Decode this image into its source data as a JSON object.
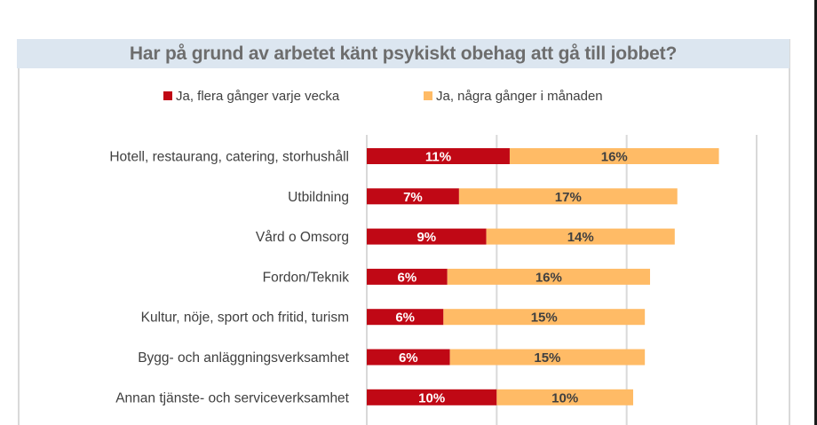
{
  "chart_data": {
    "type": "bar",
    "orientation": "horizontal",
    "stacked": true,
    "title": "Har på grund av arbetet känt psykiskt obehag att gå till jobbet?",
    "xlabel": "",
    "ylabel": "",
    "xlim": [
      0,
      30
    ],
    "grid": true,
    "gridlines_at": [
      0,
      10,
      20,
      30
    ],
    "legend_position": "top",
    "categories": [
      "Hotell, restaurang, catering, storhushåll",
      "Utbildning",
      "Vård o Omsorg",
      "Fordon/Teknik",
      "Kultur, nöje, sport och fritid, turism",
      "Bygg- och anläggningsverksamhet",
      "Annan tjänste- och serviceverksamhet"
    ],
    "series": [
      {
        "name": "Ja, flera gånger varje vecka",
        "color": "#c00815",
        "label_color": "#ffffff",
        "values": [
          11.0,
          7.1,
          9.2,
          6.2,
          5.9,
          6.4,
          10.0
        ],
        "labels": [
          "11%",
          "7%",
          "9%",
          "6%",
          "6%",
          "6%",
          "10%"
        ]
      },
      {
        "name": "Ja, några gånger i månaden",
        "color": "#ffbb66",
        "label_color": "#404040",
        "values": [
          16.1,
          16.8,
          14.5,
          15.6,
          15.5,
          15.0,
          10.5
        ],
        "labels": [
          "16%",
          "17%",
          "14%",
          "16%",
          "15%",
          "15%",
          "10%"
        ]
      }
    ]
  }
}
